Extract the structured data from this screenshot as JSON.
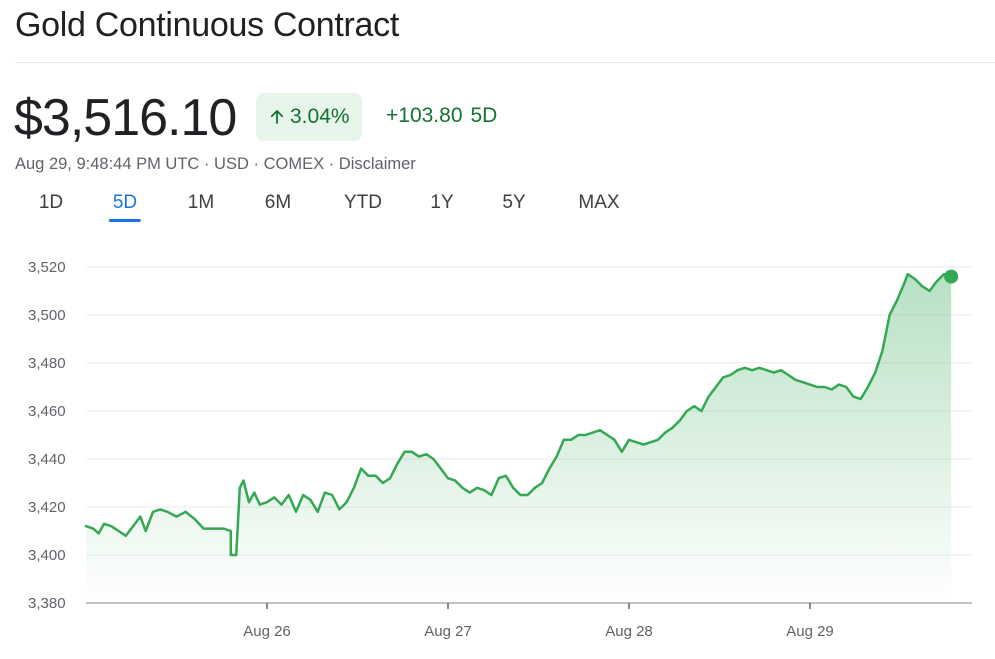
{
  "header": {
    "title": "Gold Continuous Contract"
  },
  "quote": {
    "price": "$3,516.10",
    "change_percent": "3.04%",
    "change_abs": "+103.80",
    "change_period": "5D",
    "timestamp": "Aug 29, 9:48:44 PM UTC",
    "currency": "USD",
    "exchange": "COMEX",
    "disclaimer_label": "Disclaimer",
    "separator": "·"
  },
  "tabs": [
    {
      "label": "1D",
      "active": false
    },
    {
      "label": "5D",
      "active": true
    },
    {
      "label": "1M",
      "active": false
    },
    {
      "label": "6M",
      "active": false
    },
    {
      "label": "YTD",
      "active": false
    },
    {
      "label": "1Y",
      "active": false
    },
    {
      "label": "5Y",
      "active": false
    },
    {
      "label": "MAX",
      "active": false
    }
  ],
  "colors": {
    "up": "#34a853",
    "up_text": "#137333",
    "badge_bg": "#e6f4ea",
    "accent": "#1a73e8"
  },
  "icons": {
    "change_arrow": "arrow-up-icon"
  },
  "chart_data": {
    "type": "line",
    "ylim": [
      3380,
      3530
    ],
    "yticks": [
      3380,
      3400,
      3420,
      3440,
      3460,
      3480,
      3500,
      3520
    ],
    "ytick_labels": [
      "3,380",
      "3,400",
      "3,420",
      "3,440",
      "3,460",
      "3,480",
      "3,500",
      "3,520"
    ],
    "xlim": [
      0,
      5.05
    ],
    "xticks": [
      1,
      2,
      3,
      4
    ],
    "xtick_labels": [
      "Aug 26",
      "Aug 27",
      "Aug 28",
      "Aug 29"
    ],
    "grid": true,
    "series": [
      {
        "values": [
          [
            0.0,
            3412
          ],
          [
            0.04,
            3411
          ],
          [
            0.07,
            3409
          ],
          [
            0.1,
            3413
          ],
          [
            0.14,
            3412
          ],
          [
            0.18,
            3410
          ],
          [
            0.22,
            3408
          ],
          [
            0.26,
            3412
          ],
          [
            0.3,
            3416
          ],
          [
            0.33,
            3410
          ],
          [
            0.37,
            3418
          ],
          [
            0.41,
            3419
          ],
          [
            0.45,
            3418
          ],
          [
            0.5,
            3416
          ],
          [
            0.55,
            3418
          ],
          [
            0.6,
            3415
          ],
          [
            0.65,
            3411
          ],
          [
            0.7,
            3411
          ],
          [
            0.76,
            3411
          ],
          [
            0.8,
            3410
          ],
          [
            0.8,
            3400
          ],
          [
            0.83,
            3400
          ],
          [
            0.85,
            3428
          ],
          [
            0.87,
            3431
          ],
          [
            0.9,
            3422
          ],
          [
            0.93,
            3426
          ],
          [
            0.96,
            3421
          ],
          [
            1.0,
            3422
          ],
          [
            1.04,
            3424
          ],
          [
            1.08,
            3421
          ],
          [
            1.12,
            3425
          ],
          [
            1.16,
            3418
          ],
          [
            1.2,
            3425
          ],
          [
            1.24,
            3423
          ],
          [
            1.28,
            3418
          ],
          [
            1.32,
            3426
          ],
          [
            1.36,
            3425
          ],
          [
            1.4,
            3419
          ],
          [
            1.44,
            3422
          ],
          [
            1.48,
            3428
          ],
          [
            1.52,
            3436
          ],
          [
            1.56,
            3433
          ],
          [
            1.6,
            3433
          ],
          [
            1.64,
            3430
          ],
          [
            1.68,
            3432
          ],
          [
            1.72,
            3438
          ],
          [
            1.76,
            3443
          ],
          [
            1.8,
            3443
          ],
          [
            1.84,
            3441
          ],
          [
            1.88,
            3442
          ],
          [
            1.92,
            3440
          ],
          [
            1.96,
            3436
          ],
          [
            2.0,
            3432
          ],
          [
            2.04,
            3431
          ],
          [
            2.08,
            3428
          ],
          [
            2.12,
            3426
          ],
          [
            2.16,
            3428
          ],
          [
            2.2,
            3427
          ],
          [
            2.24,
            3425
          ],
          [
            2.28,
            3432
          ],
          [
            2.32,
            3433
          ],
          [
            2.36,
            3428
          ],
          [
            2.4,
            3425
          ],
          [
            2.44,
            3425
          ],
          [
            2.48,
            3428
          ],
          [
            2.52,
            3430
          ],
          [
            2.56,
            3436
          ],
          [
            2.6,
            3441
          ],
          [
            2.64,
            3448
          ],
          [
            2.68,
            3448
          ],
          [
            2.72,
            3450
          ],
          [
            2.76,
            3450
          ],
          [
            2.8,
            3451
          ],
          [
            2.84,
            3452
          ],
          [
            2.88,
            3450
          ],
          [
            2.92,
            3448
          ],
          [
            2.96,
            3443
          ],
          [
            3.0,
            3448
          ],
          [
            3.04,
            3447
          ],
          [
            3.08,
            3446
          ],
          [
            3.12,
            3447
          ],
          [
            3.16,
            3448
          ],
          [
            3.2,
            3451
          ],
          [
            3.24,
            3453
          ],
          [
            3.28,
            3456
          ],
          [
            3.32,
            3460
          ],
          [
            3.36,
            3462
          ],
          [
            3.4,
            3460
          ],
          [
            3.44,
            3466
          ],
          [
            3.48,
            3470
          ],
          [
            3.52,
            3474
          ],
          [
            3.56,
            3475
          ],
          [
            3.6,
            3477
          ],
          [
            3.64,
            3478
          ],
          [
            3.68,
            3477
          ],
          [
            3.72,
            3478
          ],
          [
            3.76,
            3477
          ],
          [
            3.8,
            3476
          ],
          [
            3.84,
            3477
          ],
          [
            3.88,
            3475
          ],
          [
            3.92,
            3473
          ],
          [
            3.96,
            3472
          ],
          [
            4.0,
            3471
          ],
          [
            4.04,
            3470
          ],
          [
            4.08,
            3470
          ],
          [
            4.12,
            3469
          ],
          [
            4.16,
            3471
          ],
          [
            4.2,
            3470
          ],
          [
            4.24,
            3466
          ],
          [
            4.28,
            3465
          ],
          [
            4.32,
            3470
          ],
          [
            4.36,
            3476
          ],
          [
            4.4,
            3485
          ],
          [
            4.44,
            3500
          ],
          [
            4.48,
            3506
          ],
          [
            4.52,
            3513
          ],
          [
            4.54,
            3517
          ],
          [
            4.58,
            3515
          ],
          [
            4.62,
            3512
          ],
          [
            4.66,
            3510
          ],
          [
            4.7,
            3514
          ],
          [
            4.74,
            3517
          ],
          [
            4.78,
            3516
          ]
        ]
      }
    ]
  }
}
